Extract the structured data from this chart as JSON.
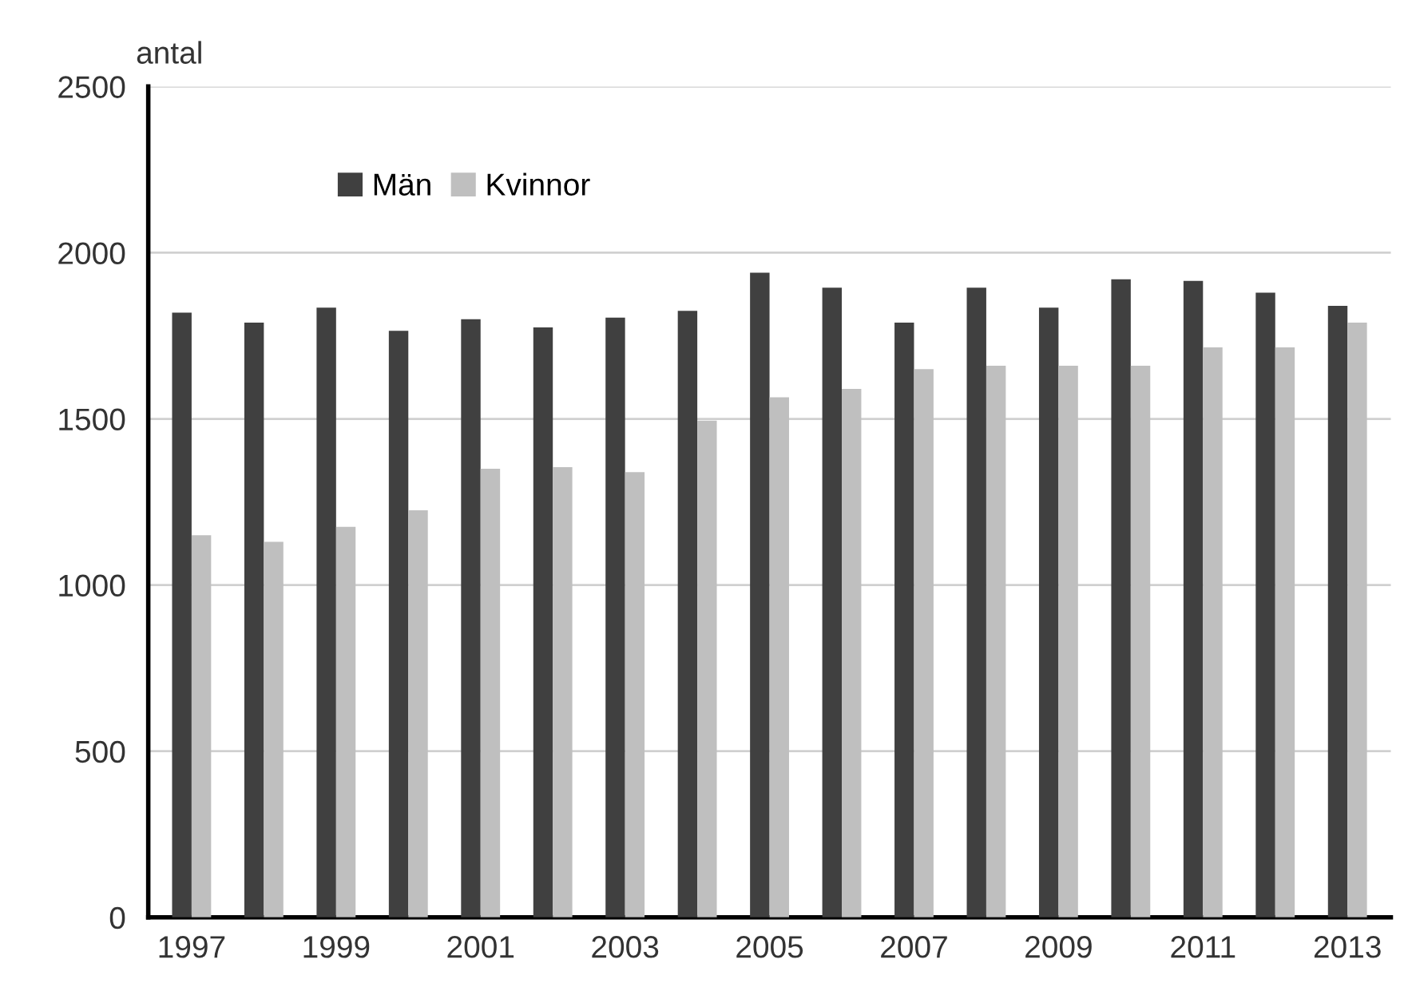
{
  "chart_data": {
    "type": "bar",
    "ylabel": "antal",
    "categories": [
      "1997",
      null,
      "1999",
      null,
      "2001",
      null,
      "2003",
      null,
      "2005",
      null,
      "2007",
      null,
      "2009",
      null,
      "2011",
      null,
      "2013"
    ],
    "series": [
      {
        "name": "Män",
        "color": "#404040",
        "values": [
          1820,
          1790,
          1835,
          1765,
          1800,
          1775,
          1805,
          1825,
          1940,
          1895,
          1790,
          1895,
          1835,
          1920,
          1915,
          1880,
          1840
        ]
      },
      {
        "name": "Kvinnor",
        "color": "#bfbfbf",
        "values": [
          1150,
          1130,
          1175,
          1225,
          1350,
          1355,
          1340,
          1495,
          1565,
          1590,
          1650,
          1660,
          1660,
          1660,
          1715,
          1715,
          1790
        ]
      }
    ],
    "ylim": [
      0,
      2500
    ],
    "yticks": [
      0,
      500,
      1000,
      1500,
      2000,
      2500
    ],
    "grid": "y",
    "legend": "top left"
  }
}
